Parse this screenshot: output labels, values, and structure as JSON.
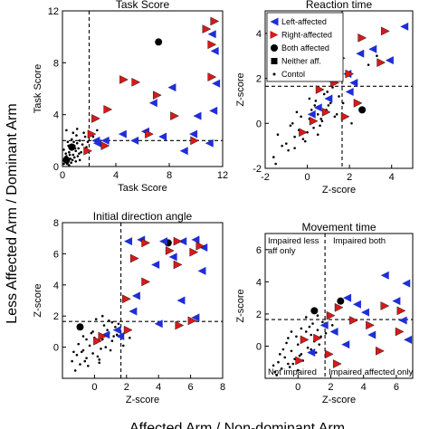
{
  "figure": {
    "ylabel_main": "Less Affected Arm / Dominant Arm",
    "xlabel_main": "Affected Arm / Non-dominant Arm"
  },
  "colors": {
    "left_affected": "#1f2ed6",
    "right_affected": "#d61a1a",
    "both_affected": "#000000",
    "control": "#000000",
    "threshold_line": "#000000"
  },
  "legend": {
    "entries": [
      "Left-affected",
      "Right-affected",
      "Both affected",
      "Neither aff.",
      "Contol"
    ]
  },
  "quadrant_labels": {
    "top_left": "Impaired less aff only",
    "top_right": "Impaired both",
    "bottom_left": "Not impaired",
    "bottom_right": "Impaired affected only"
  },
  "chart_data": [
    {
      "type": "scatter",
      "title": "Task Score",
      "xlabel": "Task Score",
      "ylabel": "Task Score",
      "xlim": [
        0,
        12
      ],
      "ylim": [
        0,
        12
      ],
      "xticks": [
        0,
        4,
        8,
        12
      ],
      "yticks": [
        0,
        4,
        8,
        12
      ],
      "threshold": {
        "x": 2,
        "y": 2
      },
      "series": [
        {
          "name": "Left-affected",
          "x": [
            11.2,
            11.4,
            11.5,
            11.3,
            6.8,
            8.2,
            10.1,
            6.2,
            7.5,
            3.2,
            4.5,
            9.1,
            11.0,
            2.5,
            5.4,
            9.8,
            2.6
          ],
          "y": [
            10.2,
            8.9,
            6.4,
            4.3,
            4.9,
            6.1,
            3.9,
            2.7,
            2.3,
            2.0,
            2.5,
            1.2,
            1.8,
            2.0,
            2.0,
            2.5,
            1.8
          ]
        },
        {
          "name": "Right-affected",
          "x": [
            11.4,
            10.8,
            11.2,
            4.6,
            5.5,
            7.1,
            8.4,
            11.2,
            3.4,
            2.5,
            6.5,
            9.9,
            3.2,
            2.2,
            1.9
          ],
          "y": [
            11.2,
            10.6,
            9.4,
            6.7,
            6.5,
            5.5,
            3.9,
            6.9,
            4.4,
            3.7,
            2.5,
            2.0,
            1.6,
            2.5,
            1.2
          ]
        },
        {
          "name": "Both affected",
          "x": [
            7.2,
            0.7,
            0.3
          ],
          "y": [
            9.6,
            1.5,
            0.5
          ]
        },
        {
          "name": "Contol",
          "x": [
            0.1,
            0.2,
            0.3,
            0.4,
            0.5,
            0.6,
            0.7,
            0.8,
            0.9,
            1.0,
            1.1,
            1.2,
            1.3,
            1.5,
            1.7,
            0.15,
            0.35,
            0.55,
            0.75,
            0.95,
            1.15,
            1.4,
            1.6,
            1.8,
            0.25,
            0.45,
            0.65,
            0.85,
            1.05,
            1.25,
            0.1,
            0.3,
            0.5,
            0.7,
            0.9,
            1.1,
            1.3,
            1.9,
            0.2,
            0.4,
            0.6,
            0.8,
            1.0,
            2.3,
            2.6
          ],
          "y": [
            0.2,
            0.5,
            0.8,
            0.3,
            1.1,
            0.6,
            1.3,
            0.9,
            1.6,
            1.2,
            1.8,
            1.4,
            2.0,
            1.7,
            2.3,
            0.4,
            0.2,
            0.9,
            0.5,
            1.4,
            0.8,
            1.1,
            2.6,
            1.5,
            1.0,
            1.6,
            0.3,
            1.9,
            2.4,
            1.0,
            1.3,
            2.8,
            0.1,
            2.1,
            0.7,
            2.9,
            0.5,
            1.9,
            0.7,
            1.9,
            1.5,
            2.6,
            0.4,
            2.3,
            2.8
          ]
        }
      ]
    },
    {
      "type": "scatter",
      "title": "Reaction time",
      "xlabel": "Z-score",
      "ylabel": "Z-score",
      "xlim": [
        -2,
        5
      ],
      "ylim": [
        -2,
        5
      ],
      "xticks": [
        -2,
        0,
        2,
        4
      ],
      "yticks": [
        -2,
        0,
        2,
        4
      ],
      "threshold": {
        "x": 1.65,
        "y": 1.65
      },
      "series": [
        {
          "name": "Left-affected",
          "x": [
            4.6,
            3.1,
            2.5,
            1.9,
            1.2,
            0.9,
            3.9,
            2.0,
            1.0,
            0.5,
            2.2,
            0.2
          ],
          "y": [
            4.3,
            3.3,
            3.1,
            2.2,
            2.6,
            2.0,
            2.8,
            1.4,
            1.1,
            0.7,
            1.8,
            0.4
          ]
        },
        {
          "name": "Right-affected",
          "x": [
            3.7,
            3.5,
            2.6,
            1.6,
            1.3,
            0.6,
            1.8,
            2.4,
            0.9,
            0.3,
            -0.2,
            2.0
          ],
          "y": [
            4.1,
            2.7,
            3.8,
            2.9,
            1.8,
            1.5,
            0.3,
            0.9,
            0.5,
            0.1,
            -0.4,
            2.2
          ]
        },
        {
          "name": "Both affected",
          "x": [
            2.6
          ],
          "y": [
            0.6
          ]
        },
        {
          "name": "Contol",
          "x": [
            -1.6,
            -1.2,
            -0.9,
            -0.6,
            -0.4,
            -0.1,
            0.1,
            0.3,
            0.5,
            0.7,
            0.9,
            1.1,
            1.3,
            1.5,
            -1.4,
            -1.0,
            -0.7,
            -0.3,
            0.0,
            0.2,
            0.4,
            0.6,
            0.8,
            1.0,
            1.2,
            -1.5,
            -0.8,
            -0.5,
            -0.2,
            0.35,
            0.65,
            0.95,
            1.4,
            2.1,
            2.9,
            3.3,
            -0.6,
            0.1,
            0.5,
            1.7
          ],
          "y": [
            -1.5,
            -1.0,
            -1.2,
            -0.6,
            -0.3,
            -0.8,
            0.2,
            -0.2,
            0.4,
            0.1,
            0.6,
            0.9,
            0.3,
            1.2,
            -0.5,
            -0.9,
            0.0,
            0.3,
            -0.4,
            0.6,
            1.0,
            -0.1,
            1.3,
            0.8,
            1.6,
            -1.8,
            -0.1,
            0.5,
            -0.7,
            0.8,
            0.2,
            1.4,
            0.4,
            0.0,
            2.6,
            3.0,
            -1.1,
            1.1,
            -0.5,
            0.9
          ]
        }
      ]
    },
    {
      "type": "scatter",
      "title": "Initial direction angle",
      "xlabel": "Z-score",
      "ylabel": "Z-score",
      "xlim": [
        -2,
        8
      ],
      "ylim": [
        -2,
        8
      ],
      "xticks": [
        0,
        2,
        4,
        6,
        8
      ],
      "yticks": [
        0,
        2,
        4,
        6,
        8
      ],
      "threshold": {
        "x": 1.65,
        "y": 1.65
      },
      "series": [
        {
          "name": "Left-affected",
          "x": [
            2.1,
            2.9,
            4.3,
            5.5,
            6.3,
            6.8,
            3.8,
            4.9,
            6.7,
            2.6,
            5.4,
            2.4,
            4.0,
            1.6,
            6.3,
            0.7,
            1.4
          ],
          "y": [
            6.8,
            6.9,
            6.8,
            6.8,
            6.9,
            6.4,
            5.3,
            5.8,
            4.9,
            3.3,
            3.0,
            2.3,
            1.5,
            0.7,
            1.9,
            0.8,
            1.1
          ]
        },
        {
          "name": "Right-affected",
          "x": [
            3.2,
            4.7,
            5.2,
            6.2,
            6.6,
            2.5,
            5.2,
            3.2,
            2.0,
            2.1,
            5.3,
            6.1,
            0.5,
            0.2
          ],
          "y": [
            6.7,
            6.2,
            6.8,
            6.1,
            6.5,
            5.7,
            5.3,
            4.2,
            3.1,
            1.1,
            1.4,
            1.7,
            0.7,
            0.4
          ]
        },
        {
          "name": "Both affected",
          "x": [
            4.6,
            -0.9
          ],
          "y": [
            6.7,
            1.3
          ]
        },
        {
          "name": "Contol",
          "x": [
            -1.4,
            -1.1,
            -0.9,
            -0.7,
            -0.5,
            -0.3,
            -0.1,
            0.1,
            0.3,
            0.5,
            0.7,
            0.9,
            1.1,
            1.3,
            -1.2,
            -0.8,
            -0.4,
            0.0,
            0.4,
            0.8,
            1.2,
            1.5,
            -1.0,
            -0.6,
            -0.2,
            0.2,
            0.6,
            1.0,
            1.4,
            -0.5,
            0.1,
            0.9,
            2.2,
            1.8,
            -1.3,
            -0.7,
            0.3,
            1.1,
            0.5,
            -0.1
          ],
          "y": [
            -0.9,
            -0.5,
            -1.1,
            -0.2,
            -0.7,
            0.1,
            -0.4,
            0.3,
            -0.8,
            0.5,
            0.0,
            0.9,
            0.4,
            1.3,
            -1.5,
            -0.3,
            -1.2,
            0.6,
            -0.1,
            1.1,
            0.7,
            1.5,
            0.2,
            -0.9,
            0.9,
            -0.6,
            1.4,
            -0.2,
            0.8,
            0.5,
            1.8,
            1.7,
            0.6,
            0.1,
            -0.3,
            0.7,
            -1.0,
            1.6,
            2.0,
            1.0
          ]
        }
      ]
    },
    {
      "type": "scatter",
      "title": "Movement time",
      "xlabel": "Z-score",
      "ylabel": "Z-score",
      "xlim": [
        -2,
        7
      ],
      "ylim": [
        -2,
        7
      ],
      "xticks": [
        0,
        2,
        4,
        6
      ],
      "yticks": [
        0,
        2,
        4,
        6
      ],
      "threshold": {
        "x": 1.65,
        "y": 1.65
      },
      "series": [
        {
          "name": "Left-affected",
          "x": [
            6.6,
            6.0,
            4.1,
            3.0,
            5.3,
            2.2,
            6.4,
            4.5,
            1.6,
            2.9,
            0.8,
            3.6,
            6.7
          ],
          "y": [
            3.9,
            2.8,
            2.1,
            3.0,
            4.4,
            0.9,
            1.6,
            0.7,
            1.3,
            0.1,
            -0.4,
            2.6,
            0.4
          ]
        },
        {
          "name": "Right-affected",
          "x": [
            6.3,
            5.3,
            4.4,
            3.4,
            2.0,
            2.5,
            5.0,
            6.2,
            1.2,
            1.9,
            0.4,
            2.4,
            0.1
          ],
          "y": [
            2.2,
            2.5,
            1.3,
            1.6,
            1.9,
            2.4,
            -0.3,
            0.9,
            0.5,
            -0.5,
            0.4,
            -1.1,
            -0.9
          ]
        },
        {
          "name": "Both affected",
          "x": [
            1.0,
            2.6
          ],
          "y": [
            2.2,
            2.8
          ]
        },
        {
          "name": "Contol",
          "x": [
            -1.4,
            -1.2,
            -1.0,
            -0.8,
            -0.6,
            -0.4,
            -0.2,
            0.0,
            0.2,
            0.4,
            0.6,
            0.8,
            1.0,
            1.2,
            1.4,
            -1.3,
            -0.9,
            -0.5,
            -0.1,
            0.3,
            0.7,
            1.1,
            1.5,
            -1.1,
            -0.7,
            -0.3,
            0.1,
            0.5,
            0.9,
            1.3,
            -0.6,
            0.2,
            0.8,
            1.7,
            2.1,
            -1.5,
            -0.4,
            0.5,
            1.2,
            0.0
          ],
          "y": [
            -1.6,
            -1.0,
            -1.4,
            -0.7,
            -1.1,
            -0.3,
            -0.8,
            0.1,
            -0.5,
            0.4,
            -0.1,
            0.7,
            0.3,
            1.0,
            0.6,
            -1.8,
            -0.2,
            -1.3,
            0.6,
            -0.9,
            1.2,
            -0.4,
            1.5,
            -0.5,
            0.2,
            -1.1,
            -0.6,
            0.9,
            1.4,
            0.1,
            0.5,
            1.1,
            -0.2,
            0.8,
            1.3,
            -1.2,
            0.9,
            1.8,
            1.9,
            -1.5
          ]
        }
      ]
    }
  ]
}
